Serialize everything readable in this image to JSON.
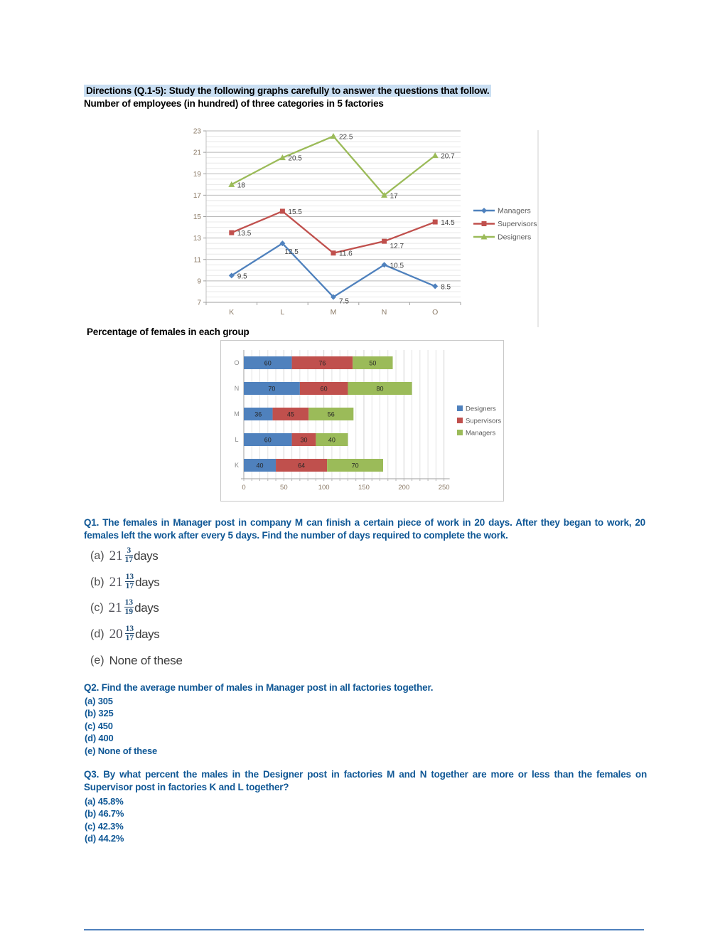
{
  "header": {
    "directions": "Directions (Q.1-5): Study the following graphs carefully to answer the questions that follow.",
    "subtitle": "Number of employees (in hundred) of three categories in 5 factories",
    "bar_chart_title": "Percentage of females in each group"
  },
  "chart_data": [
    {
      "type": "line",
      "title": "Number of employees (in hundred) of three categories in 5 factories",
      "categories": [
        "K",
        "L",
        "M",
        "N",
        "O"
      ],
      "series": [
        {
          "name": "Managers",
          "color": "#4F81BD",
          "marker": "diamond",
          "values": [
            9.5,
            12.5,
            7.5,
            10.5,
            8.5
          ]
        },
        {
          "name": "Supervisors",
          "color": "#C0504D",
          "marker": "square",
          "values": [
            13.5,
            15.5,
            11.6,
            12.7,
            14.5
          ]
        },
        {
          "name": "Designers",
          "color": "#9BBB59",
          "marker": "triangle",
          "values": [
            18,
            20.5,
            22.5,
            17,
            20.7
          ]
        }
      ],
      "ylim": [
        7,
        23
      ],
      "ytick_step": 2,
      "minor_grid_step": 0.5,
      "legend_position": "right",
      "data_labels": true,
      "axis_label_color": "#8b7a66",
      "legend_text_color": "#595959"
    },
    {
      "type": "bar",
      "orientation": "horizontal-stacked",
      "title": "Percentage of females in each group",
      "categories": [
        "K",
        "L",
        "M",
        "N",
        "O"
      ],
      "series": [
        {
          "name": "Designers",
          "color": "#4F81BD",
          "values": [
            40,
            60,
            36,
            70,
            60
          ]
        },
        {
          "name": "Supervisors",
          "color": "#C0504D",
          "values": [
            64,
            30,
            45,
            60,
            76
          ]
        },
        {
          "name": "Managers",
          "color": "#9BBB59",
          "values": [
            70,
            40,
            56,
            80,
            50
          ]
        }
      ],
      "xlim": [
        0,
        250
      ],
      "xticks": [
        0,
        50,
        100,
        150,
        200,
        250
      ],
      "minor_grid_step": 10,
      "legend_position": "right",
      "data_labels": true,
      "axis_label_color": "#8b7a66",
      "legend_text_color": "#595959"
    }
  ],
  "questions": [
    {
      "id": "Q1",
      "text": "Q1. The females in Manager post in company M can finish a certain piece of work in 20 days. After they began to work, 20 females left the work after every 5 days. Find the number of days required to complete the work.",
      "options": [
        {
          "label": "(a)",
          "whole": "21",
          "num": "3",
          "den": "17",
          "suffix": "days"
        },
        {
          "label": "(b)",
          "whole": "21",
          "num": "13",
          "den": "17",
          "suffix": "days"
        },
        {
          "label": "(c)",
          "whole": "21",
          "num": "13",
          "den": "19",
          "suffix": "days"
        },
        {
          "label": "(d)",
          "whole": "20",
          "num": "13",
          "den": "17",
          "suffix": "days"
        },
        {
          "label": "(e)",
          "text": "None of these"
        }
      ]
    },
    {
      "id": "Q2",
      "text": "Q2. Find the average number of males in Manager post in all factories together.",
      "options": [
        "(a) 305",
        "(b) 325",
        "(c) 450",
        "(d) 400",
        "(e) None of these"
      ]
    },
    {
      "id": "Q3",
      "text": "Q3. By what percent the males in the Designer post in factories M and N together are more or less than the females on Supervisor post in factories K and L together?",
      "options": [
        "(a) 45.8%",
        "(b) 46.7%",
        "(c) 42.3%",
        "(d) 44.2%"
      ]
    }
  ]
}
